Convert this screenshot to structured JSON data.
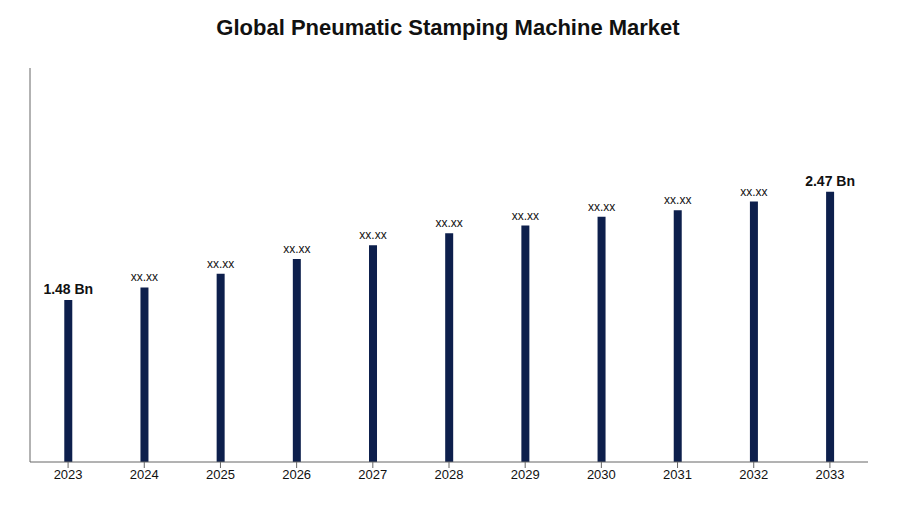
{
  "chart_data": {
    "type": "bar",
    "title": "Global Pneumatic Stamping Machine Market",
    "categories": [
      "2023",
      "2024",
      "2025",
      "2026",
      "2027",
      "2028",
      "2029",
      "2030",
      "2031",
      "2032",
      "2033"
    ],
    "values": [
      1.48,
      1.595,
      1.72,
      1.855,
      1.98,
      2.09,
      2.16,
      2.24,
      2.3,
      2.38,
      2.47
    ],
    "value_labels": [
      "1.48 Bn",
      "xx.xx",
      "xx.xx",
      "xx.xx",
      "xx.xx",
      "xx.xx",
      "xx.xx",
      "xx.xx",
      "xx.xx",
      "xx.xx",
      "2.47 Bn"
    ],
    "data_labels": true,
    "color": "#0d1f4c",
    "ylim": [
      0,
      3.6
    ],
    "grid": false,
    "tick_labels": "x"
  }
}
